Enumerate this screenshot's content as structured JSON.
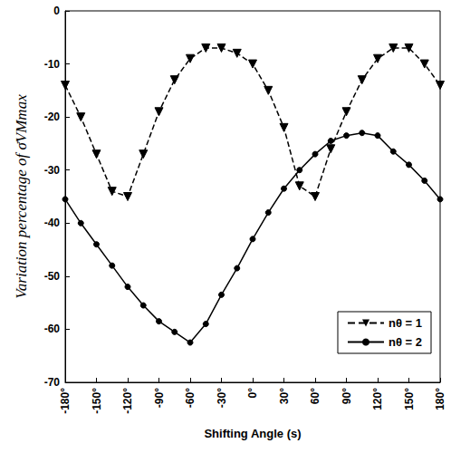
{
  "chart_data": {
    "type": "line",
    "x_label": "Shifting Angle (s)",
    "y_label": "Variation percentage of σ̄VMmax",
    "x": [
      -180,
      -165,
      -150,
      -135,
      -120,
      -105,
      -90,
      -75,
      -60,
      -45,
      -30,
      -15,
      0,
      15,
      30,
      45,
      60,
      75,
      90,
      105,
      120,
      135,
      150,
      165,
      180
    ],
    "series": [
      {
        "name": "nθ = 1",
        "color": "#000000",
        "marker": "triangle-down",
        "line_style": "dashed",
        "values": [
          -14,
          -20,
          -27,
          -34,
          -35,
          -27,
          -19,
          -13,
          -9,
          -7,
          -7,
          -8,
          -10,
          -15,
          -22,
          -33,
          -35,
          -26,
          -19,
          -13,
          -9,
          -7,
          -7,
          -10,
          -14
        ]
      },
      {
        "name": "nθ = 2",
        "color": "#000000",
        "marker": "circle",
        "line_style": "solid",
        "values": [
          -35.5,
          -40,
          -44,
          -48,
          -52,
          -55.5,
          -58.5,
          -60.5,
          -62.5,
          -59,
          -53.5,
          -48.5,
          -43,
          -38,
          -33.5,
          -30,
          -27,
          -24.5,
          -23.5,
          -23,
          -23.5,
          -26.5,
          -29,
          -32,
          -35.5
        ]
      }
    ],
    "xlim": [
      -180,
      180
    ],
    "xticks": [
      {
        "value": -180,
        "label": "-180°"
      },
      {
        "value": -150,
        "label": "-150°"
      },
      {
        "value": -120,
        "label": "-120°"
      },
      {
        "value": -90,
        "label": "-90°"
      },
      {
        "value": -60,
        "label": "-60°"
      },
      {
        "value": -30,
        "label": "-30°"
      },
      {
        "value": 0,
        "label": "0°"
      },
      {
        "value": 30,
        "label": "30°"
      },
      {
        "value": 60,
        "label": "60°"
      },
      {
        "value": 90,
        "label": "90°"
      },
      {
        "value": 120,
        "label": "120°"
      },
      {
        "value": 150,
        "label": "150°"
      },
      {
        "value": 180,
        "label": "180°"
      }
    ],
    "ylim": [
      -70,
      0
    ],
    "yticks": [
      -70,
      -60,
      -50,
      -40,
      -30,
      -20,
      -10,
      0
    ],
    "grid": false,
    "legend": "lower right"
  }
}
